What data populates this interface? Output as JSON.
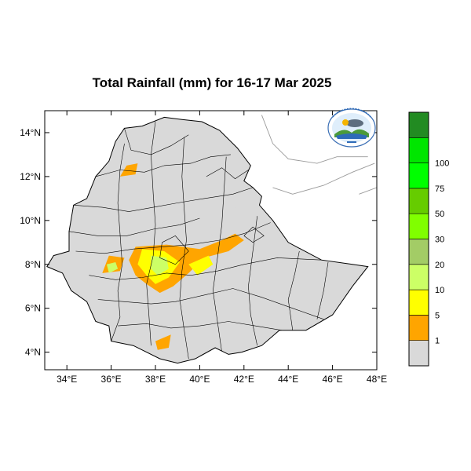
{
  "title": "Total Rainfall (mm) for 16-17 Mar 2025",
  "map": {
    "lon_range": [
      33,
      48
    ],
    "lat_range": [
      3.2,
      15
    ],
    "lat_ticks": [
      {
        "value": 14,
        "label": "14°N"
      },
      {
        "value": 12,
        "label": "12°N"
      },
      {
        "value": 10,
        "label": "10°N"
      },
      {
        "value": 8,
        "label": "8°N"
      },
      {
        "value": 6,
        "label": "6°N"
      },
      {
        "value": 4,
        "label": "4°N"
      }
    ],
    "lon_ticks": [
      {
        "value": 34,
        "label": "34°E"
      },
      {
        "value": 36,
        "label": "36°E"
      },
      {
        "value": 38,
        "label": "38°E"
      },
      {
        "value": 40,
        "label": "40°E"
      },
      {
        "value": 42,
        "label": "42°E"
      },
      {
        "value": 44,
        "label": "44°E"
      },
      {
        "value": 46,
        "label": "46°E"
      },
      {
        "value": 48,
        "label": "48°E"
      }
    ],
    "outline": [
      [
        36.6,
        14.2
      ],
      [
        37.4,
        14.3
      ],
      [
        38.4,
        14.7
      ],
      [
        39.2,
        14.6
      ],
      [
        40.1,
        14.5
      ],
      [
        40.9,
        14.1
      ],
      [
        41.7,
        13.3
      ],
      [
        42.3,
        12.5
      ],
      [
        42.0,
        11.8
      ],
      [
        42.4,
        11.5
      ],
      [
        42.8,
        11.1
      ],
      [
        42.7,
        10.7
      ],
      [
        43.3,
        10.0
      ],
      [
        44.0,
        9.0
      ],
      [
        45.5,
        8.2
      ],
      [
        46.9,
        8.0
      ],
      [
        47.6,
        7.9
      ],
      [
        46.9,
        7.0
      ],
      [
        46.0,
        5.7
      ],
      [
        44.8,
        5.0
      ],
      [
        43.6,
        5.0
      ],
      [
        42.8,
        4.3
      ],
      [
        41.9,
        4.0
      ],
      [
        41.3,
        3.9
      ],
      [
        40.7,
        4.2
      ],
      [
        39.8,
        3.7
      ],
      [
        39.0,
        3.5
      ],
      [
        38.2,
        3.7
      ],
      [
        37.0,
        4.3
      ],
      [
        36.0,
        4.5
      ],
      [
        35.9,
        5.2
      ],
      [
        35.3,
        5.4
      ],
      [
        34.9,
        6.3
      ],
      [
        34.2,
        6.8
      ],
      [
        33.8,
        7.6
      ],
      [
        33.1,
        7.9
      ],
      [
        33.4,
        8.4
      ],
      [
        34.1,
        8.6
      ],
      [
        34.1,
        9.5
      ],
      [
        34.3,
        10.7
      ],
      [
        34.9,
        11.0
      ],
      [
        35.3,
        12.0
      ],
      [
        35.9,
        12.7
      ],
      [
        36.2,
        13.6
      ]
    ],
    "ocean_lines": [
      [
        [
          42.8,
          14.8
        ],
        [
          43.3,
          13.5
        ],
        [
          44.0,
          12.8
        ],
        [
          45.3,
          12.6
        ],
        [
          46.2,
          12.9
        ],
        [
          47.6,
          12.9
        ]
      ],
      [
        [
          43.3,
          11.5
        ],
        [
          44.2,
          11.2
        ],
        [
          45.6,
          11.6
        ],
        [
          46.9,
          12.2
        ],
        [
          47.9,
          12.6
        ]
      ],
      [
        [
          47.2,
          11.2
        ],
        [
          48.0,
          11.5
        ]
      ]
    ],
    "rain_zones": [
      {
        "level": 1,
        "points": [
          [
            36.0,
            11.3
          ],
          [
            37.6,
            11.4
          ],
          [
            37.9,
            12.6
          ],
          [
            37.2,
            13.3
          ],
          [
            36.6,
            12.8
          ]
        ]
      },
      {
        "level": 1,
        "points": [
          [
            37.8,
            12.8
          ],
          [
            38.6,
            12.9
          ],
          [
            38.4,
            13.7
          ],
          [
            37.7,
            13.6
          ]
        ]
      },
      {
        "level": 1,
        "points": [
          [
            38.6,
            11.6
          ],
          [
            39.7,
            11.4
          ],
          [
            39.6,
            12.2
          ],
          [
            38.8,
            12.2
          ]
        ]
      },
      {
        "level": 1,
        "points": [
          [
            34.7,
            10.2
          ],
          [
            36.7,
            10.0
          ],
          [
            37.0,
            9.5
          ],
          [
            38.5,
            9.4
          ],
          [
            39.5,
            9.3
          ],
          [
            40.3,
            9.9
          ],
          [
            41.2,
            10.5
          ],
          [
            41.6,
            10.0
          ],
          [
            42.4,
            9.6
          ],
          [
            43.0,
            9.5
          ],
          [
            42.9,
            8.9
          ],
          [
            42.3,
            8.6
          ],
          [
            41.4,
            8.2
          ],
          [
            40.2,
            7.8
          ],
          [
            40.0,
            7.1
          ],
          [
            39.3,
            6.7
          ],
          [
            39.1,
            5.9
          ],
          [
            38.7,
            5.5
          ],
          [
            38.1,
            5.6
          ],
          [
            37.2,
            5.5
          ],
          [
            36.7,
            5.8
          ],
          [
            36.3,
            6.2
          ],
          [
            35.8,
            6.0
          ],
          [
            35.5,
            6.5
          ],
          [
            35.3,
            7.3
          ],
          [
            34.6,
            7.5
          ],
          [
            34.5,
            8.3
          ],
          [
            34.5,
            9.2
          ]
        ]
      },
      {
        "level": 1,
        "points": [
          [
            40.4,
            9.5
          ],
          [
            41.0,
            10.6
          ],
          [
            41.4,
            11.0
          ],
          [
            41.8,
            10.3
          ],
          [
            41.2,
            9.8
          ],
          [
            40.7,
            9.2
          ]
        ]
      },
      {
        "level": 1,
        "points": [
          [
            37.0,
            5.0
          ],
          [
            38.2,
            4.9
          ],
          [
            39.0,
            5.2
          ],
          [
            39.3,
            4.6
          ],
          [
            38.7,
            4.0
          ],
          [
            37.6,
            4.2
          ],
          [
            36.9,
            4.4
          ]
        ]
      },
      {
        "level": 1,
        "points": [
          [
            35.9,
            5.4
          ],
          [
            36.5,
            5.7
          ],
          [
            36.3,
            4.8
          ],
          [
            35.8,
            4.8
          ]
        ]
      },
      {
        "level": 1,
        "points": [
          [
            33.2,
            7.8
          ],
          [
            33.9,
            7.9
          ],
          [
            33.8,
            8.4
          ],
          [
            33.3,
            8.3
          ]
        ]
      },
      {
        "level": 1,
        "points": [
          [
            34.0,
            6.3
          ],
          [
            34.6,
            6.6
          ],
          [
            34.3,
            7.0
          ],
          [
            33.9,
            6.8
          ]
        ]
      },
      {
        "level": 5,
        "points": [
          [
            36.4,
            12.0
          ],
          [
            37.1,
            12.1
          ],
          [
            37.2,
            12.6
          ],
          [
            36.7,
            12.5
          ]
        ]
      },
      {
        "level": 5,
        "points": [
          [
            37.1,
            8.8
          ],
          [
            38.5,
            8.9
          ],
          [
            40.0,
            8.7
          ],
          [
            41.0,
            9.1
          ],
          [
            41.6,
            9.4
          ],
          [
            42.0,
            9.1
          ],
          [
            41.3,
            8.6
          ],
          [
            40.2,
            8.3
          ],
          [
            39.5,
            7.6
          ],
          [
            38.8,
            7.0
          ],
          [
            38.2,
            6.7
          ],
          [
            37.6,
            7.1
          ],
          [
            37.1,
            7.5
          ],
          [
            36.8,
            8.2
          ]
        ]
      },
      {
        "level": 5,
        "points": [
          [
            38.0,
            4.5
          ],
          [
            38.7,
            4.8
          ],
          [
            38.6,
            4.2
          ],
          [
            38.1,
            4.1
          ]
        ]
      },
      {
        "level": 5,
        "points": [
          [
            35.6,
            7.6
          ],
          [
            36.4,
            7.7
          ],
          [
            36.6,
            8.3
          ],
          [
            35.9,
            8.4
          ]
        ]
      },
      {
        "level": 10,
        "points": [
          [
            37.4,
            8.7
          ],
          [
            38.4,
            8.6
          ],
          [
            39.1,
            8.1
          ],
          [
            38.6,
            7.4
          ],
          [
            38.0,
            7.1
          ],
          [
            37.6,
            7.5
          ],
          [
            37.2,
            8.0
          ]
        ]
      },
      {
        "level": 10,
        "points": [
          [
            39.5,
            8.0
          ],
          [
            40.4,
            8.4
          ],
          [
            40.6,
            8.0
          ],
          [
            39.9,
            7.5
          ]
        ]
      },
      {
        "level": 20,
        "points": [
          [
            37.8,
            8.4
          ],
          [
            38.5,
            8.3
          ],
          [
            38.6,
            7.8
          ],
          [
            38.1,
            7.5
          ],
          [
            37.8,
            7.8
          ]
        ]
      },
      {
        "level": 20,
        "points": [
          [
            35.9,
            7.6
          ],
          [
            36.3,
            7.8
          ],
          [
            36.2,
            8.1
          ],
          [
            35.8,
            8.0
          ]
        ]
      }
    ]
  },
  "legend": {
    "swatches": [
      {
        "color": "#d9d9d9",
        "label": "1"
      },
      {
        "color": "#ffa500",
        "label": "5"
      },
      {
        "color": "#ffff00",
        "label": "10"
      },
      {
        "color": "#ccff66",
        "label": "20"
      },
      {
        "color": "#a3cc66",
        "label": "30"
      },
      {
        "color": "#80ff00",
        "label": "50"
      },
      {
        "color": "#66cc00",
        "label": "75"
      },
      {
        "color": "#00ff00",
        "label": "100"
      },
      {
        "color": "#00e600",
        "label": ""
      },
      {
        "color": "#228b22",
        "label": ""
      }
    ]
  },
  "logo": {
    "icon": "national-meteorology-agency-logo"
  }
}
